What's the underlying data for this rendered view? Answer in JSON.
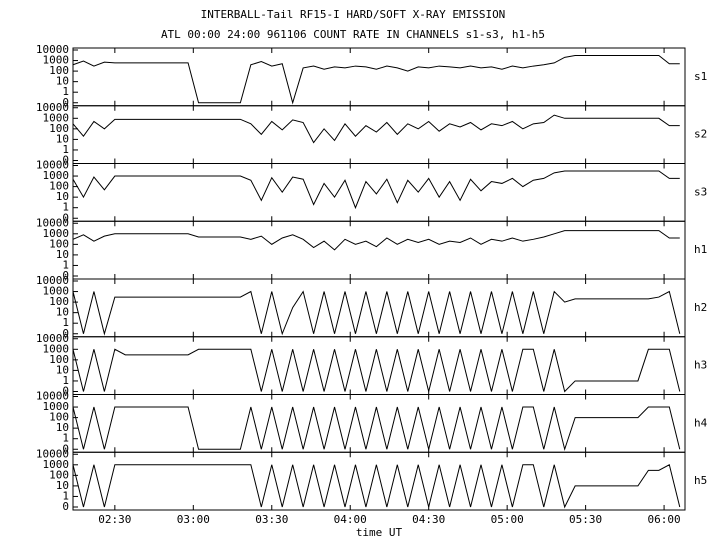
{
  "chart_data": {
    "type": "line",
    "title": "INTERBALL-Tail RF15-I HARD/SOFT X-RAY EMISSION",
    "subtitle": "ATL 00:00 24:00 961106  COUNT RATE IN CHANNELS s1-s3, h1-h5",
    "xlabel": "time UT",
    "xlim": [
      134,
      368
    ],
    "xticks": [
      {
        "value": 150,
        "label": "02:30"
      },
      {
        "value": 180,
        "label": "03:00"
      },
      {
        "value": 210,
        "label": "03:30"
      },
      {
        "value": 240,
        "label": "04:00"
      },
      {
        "value": 270,
        "label": "04:30"
      },
      {
        "value": 300,
        "label": "05:00"
      },
      {
        "value": 330,
        "label": "05:30"
      },
      {
        "value": 360,
        "label": "06:00"
      }
    ],
    "ylim": [
      0,
      10000
    ],
    "yticks": [
      0,
      1,
      10,
      100,
      1000,
      10000
    ],
    "x": [
      134,
      138,
      142,
      146,
      150,
      154,
      158,
      162,
      166,
      170,
      174,
      178,
      182,
      186,
      190,
      194,
      198,
      202,
      206,
      210,
      214,
      218,
      222,
      226,
      230,
      234,
      238,
      242,
      246,
      250,
      254,
      258,
      262,
      266,
      270,
      274,
      278,
      282,
      286,
      290,
      294,
      298,
      302,
      306,
      310,
      314,
      318,
      322,
      326,
      330,
      334,
      338,
      342,
      346,
      350,
      354,
      358,
      362,
      366
    ],
    "series": [
      {
        "name": "s1",
        "color": "#000000",
        "values": [
          400,
          900,
          300,
          700,
          600,
          600,
          600,
          600,
          600,
          600,
          600,
          600,
          0,
          0,
          0,
          0,
          0,
          400,
          800,
          300,
          500,
          0,
          200,
          300,
          150,
          250,
          200,
          300,
          250,
          150,
          300,
          200,
          100,
          250,
          200,
          300,
          250,
          200,
          300,
          200,
          250,
          150,
          300,
          200,
          300,
          400,
          600,
          2000,
          3000,
          3000,
          3000,
          3000,
          3000,
          3000,
          3000,
          3000,
          3000,
          500,
          500
        ]
      },
      {
        "name": "s2",
        "color": "#000000",
        "values": [
          300,
          20,
          500,
          100,
          800,
          800,
          800,
          800,
          800,
          800,
          800,
          800,
          800,
          800,
          800,
          800,
          800,
          300,
          30,
          500,
          80,
          700,
          400,
          5,
          100,
          8,
          300,
          20,
          200,
          50,
          400,
          30,
          300,
          100,
          500,
          60,
          300,
          150,
          400,
          80,
          300,
          200,
          500,
          100,
          300,
          400,
          2000,
          1000,
          1000,
          1000,
          1000,
          1000,
          1000,
          1000,
          1000,
          1000,
          1000,
          200,
          200
        ]
      },
      {
        "name": "s3",
        "color": "#000000",
        "values": [
          500,
          10,
          800,
          50,
          1000,
          1000,
          1000,
          1000,
          1000,
          1000,
          1000,
          1000,
          1000,
          1000,
          1000,
          1000,
          1000,
          400,
          5,
          700,
          30,
          800,
          500,
          2,
          200,
          10,
          400,
          1,
          300,
          20,
          500,
          3,
          400,
          30,
          600,
          10,
          300,
          5,
          500,
          40,
          300,
          200,
          600,
          100,
          400,
          600,
          2000,
          3000,
          3000,
          3000,
          3000,
          3000,
          3000,
          3000,
          3000,
          3000,
          3000,
          600,
          600
        ]
      },
      {
        "name": "h1",
        "color": "#000000",
        "values": [
          300,
          800,
          200,
          600,
          1000,
          1000,
          1000,
          1000,
          1000,
          1000,
          1000,
          1000,
          500,
          500,
          500,
          500,
          500,
          300,
          600,
          100,
          400,
          800,
          300,
          50,
          200,
          30,
          300,
          100,
          200,
          60,
          400,
          100,
          300,
          150,
          300,
          100,
          200,
          150,
          400,
          100,
          300,
          200,
          400,
          200,
          300,
          500,
          1000,
          2000,
          2000,
          2000,
          2000,
          2000,
          2000,
          2000,
          2000,
          2000,
          2000,
          400,
          400
        ]
      },
      {
        "name": "h2",
        "color": "#000000",
        "values": [
          1000,
          0,
          1000,
          0,
          300,
          300,
          300,
          300,
          300,
          300,
          300,
          300,
          300,
          300,
          300,
          300,
          300,
          1000,
          0,
          1000,
          0,
          30,
          1000,
          0,
          1000,
          0,
          1000,
          0,
          1000,
          0,
          1000,
          0,
          1000,
          0,
          1000,
          0,
          1000,
          0,
          1000,
          0,
          1000,
          0,
          1000,
          0,
          1000,
          0,
          1000,
          100,
          200,
          200,
          200,
          200,
          200,
          200,
          200,
          200,
          300,
          1000,
          0
        ]
      },
      {
        "name": "h3",
        "color": "#000000",
        "values": [
          1000,
          0,
          1000,
          0,
          1000,
          300,
          300,
          300,
          300,
          300,
          300,
          300,
          1000,
          1000,
          1000,
          1000,
          1000,
          1000,
          0,
          1000,
          0,
          1000,
          0,
          1000,
          0,
          1000,
          0,
          1000,
          0,
          1000,
          0,
          1000,
          0,
          1000,
          0,
          1000,
          0,
          1000,
          0,
          1000,
          0,
          1000,
          0,
          1000,
          1000,
          0,
          1000,
          0,
          1,
          1,
          1,
          1,
          1,
          1,
          1,
          1000,
          1000,
          1000,
          0
        ]
      },
      {
        "name": "h4",
        "color": "#000000",
        "values": [
          1000,
          0,
          1000,
          0,
          1000,
          1000,
          1000,
          1000,
          1000,
          1000,
          1000,
          1000,
          0,
          0,
          0,
          0,
          0,
          1000,
          0,
          1000,
          0,
          1000,
          0,
          1000,
          0,
          1000,
          0,
          1000,
          0,
          1000,
          0,
          1000,
          0,
          1000,
          0,
          1000,
          0,
          1000,
          0,
          1000,
          0,
          1000,
          0,
          1000,
          1000,
          0,
          1000,
          0,
          100,
          100,
          100,
          100,
          100,
          100,
          100,
          1000,
          1000,
          1000,
          0
        ]
      },
      {
        "name": "h5",
        "color": "#000000",
        "values": [
          1000,
          0,
          1000,
          0,
          1000,
          1000,
          1000,
          1000,
          1000,
          1000,
          1000,
          1000,
          1000,
          1000,
          1000,
          1000,
          1000,
          1000,
          0,
          1000,
          0,
          1000,
          0,
          1000,
          0,
          1000,
          0,
          1000,
          0,
          1000,
          0,
          1000,
          0,
          1000,
          0,
          1000,
          0,
          1000,
          0,
          1000,
          0,
          1000,
          0,
          1000,
          1000,
          0,
          1000,
          0,
          10,
          10,
          10,
          10,
          10,
          10,
          10,
          300,
          300,
          1000,
          0
        ]
      }
    ]
  }
}
